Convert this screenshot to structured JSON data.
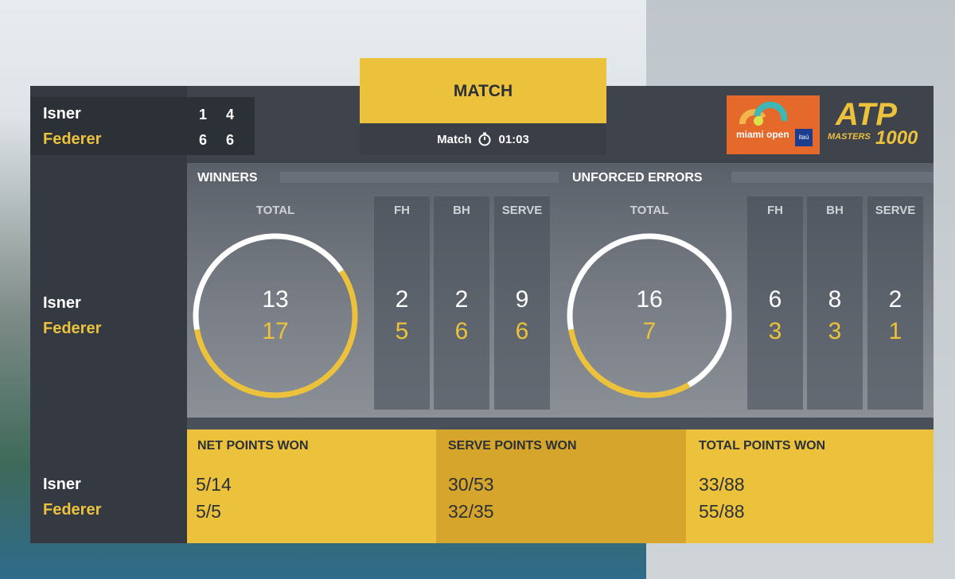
{
  "scoreboard": {
    "players": [
      {
        "name": "Isner",
        "sets": [
          1,
          4
        ]
      },
      {
        "name": "Federer",
        "sets": [
          6,
          6
        ]
      }
    ]
  },
  "header": {
    "tab": "MATCH",
    "timer_label": "Match",
    "timer_icon": "stopwatch-icon",
    "time": "01:03"
  },
  "logos": {
    "tournament": "miami open",
    "sponsor": "itaú",
    "tour": "ATP",
    "tour_sub": "MASTERS",
    "tour_num": "1000"
  },
  "winners": {
    "title": "WINNERS",
    "total_label": "TOTAL",
    "cols": [
      "FH",
      "BH",
      "SERVE"
    ],
    "isner": {
      "total": 13,
      "fh": 2,
      "bh": 2,
      "serve": 9
    },
    "federer": {
      "total": 17,
      "fh": 5,
      "bh": 6,
      "serve": 6
    }
  },
  "errors": {
    "title": "UNFORCED ERRORS",
    "total_label": "TOTAL",
    "cols": [
      "FH",
      "BH",
      "SERVE"
    ],
    "isner": {
      "total": 16,
      "fh": 6,
      "bh": 8,
      "serve": 2
    },
    "federer": {
      "total": 7,
      "fh": 3,
      "bh": 3,
      "serve": 1
    }
  },
  "names": {
    "p1": "Isner",
    "p2": "Federer"
  },
  "bottom": [
    {
      "label": "NET POINTS WON",
      "p1": "5/14",
      "p2": "5/5"
    },
    {
      "label": "SERVE POINTS WON",
      "p1": "30/53",
      "p2": "32/35"
    },
    {
      "label": "TOTAL POINTS WON",
      "p1": "33/88",
      "p2": "55/88"
    }
  ],
  "colors": {
    "gold": "#ecc23d",
    "dark_gold": "#d6a52c",
    "panel": "#4a5059",
    "white": "#ffffff"
  }
}
